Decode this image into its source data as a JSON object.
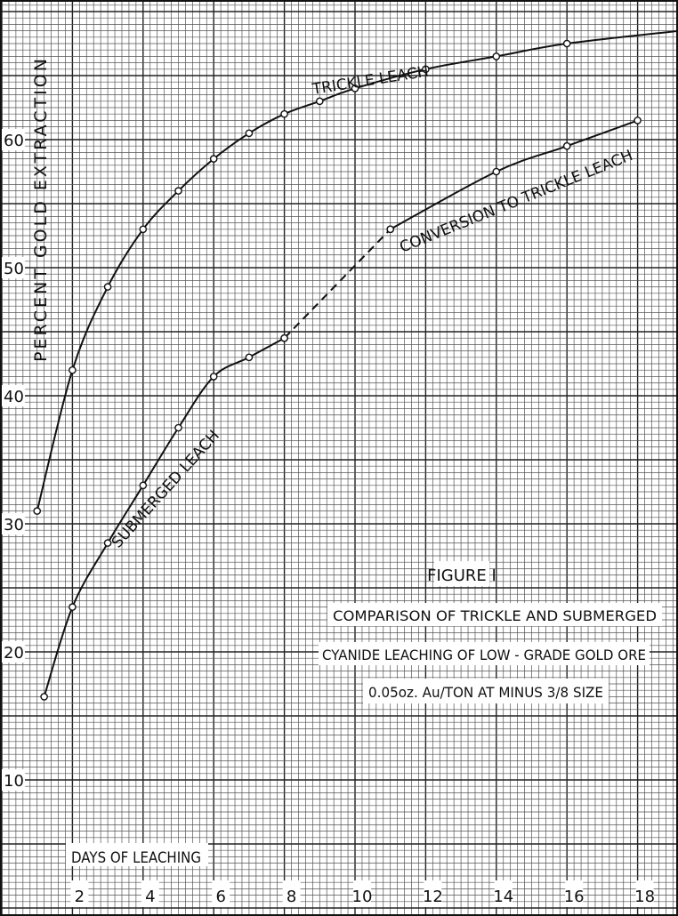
{
  "chart_data": {
    "type": "line",
    "ylabel": "PERCENT GOLD EXTRACTION",
    "xlabel": "DAYS OF LEACHING",
    "xlim": [
      0.1,
      19.2
    ],
    "ylim": [
      0,
      70
    ],
    "grid": true,
    "x_ticks": [
      2,
      4,
      6,
      8,
      10,
      12,
      14,
      16,
      18
    ],
    "y_ticks": [
      10,
      20,
      30,
      40,
      50,
      60
    ],
    "series": [
      {
        "name": "TRICKLE LEACH",
        "x": [
          1,
          2,
          3,
          4,
          5,
          6,
          7,
          8,
          9,
          10,
          12,
          14,
          16,
          19.2
        ],
        "y": [
          31.0,
          42.0,
          48.5,
          53.0,
          56.0,
          58.5,
          60.5,
          62.0,
          63.0,
          64.0,
          65.5,
          66.5,
          67.5,
          68.5
        ]
      },
      {
        "name": "SUBMERGED LEACH",
        "x": [
          1.2,
          2,
          3,
          4,
          5,
          6,
          7,
          8
        ],
        "y": [
          16.5,
          23.5,
          28.5,
          33.0,
          37.5,
          41.5,
          43.0,
          44.5
        ]
      },
      {
        "name": "CONVERSION TO TRICKLE LEACH",
        "x": [
          8,
          11
        ],
        "y": [
          44.5,
          53.0
        ],
        "line_style": "dashed"
      },
      {
        "name": "CONVERSION TO TRICKLE LEACH",
        "x": [
          11,
          14,
          16,
          18
        ],
        "y": [
          53.0,
          57.5,
          59.5,
          61.5
        ]
      }
    ],
    "curve_labels": [
      "TRICKLE LEACH",
      "SUBMERGED LEACH",
      "CONVERSION TO TRICKLE LEACH"
    ],
    "annotations": {
      "figure_number": "FIGURE I",
      "caption_line1": "COMPARISON OF TRICKLE AND SUBMERGED",
      "caption_line2": "CYANIDE LEACHING OF LOW - GRADE GOLD ORE",
      "caption_line3": "0.05oz. Au/TON AT MINUS 3/8 SIZE"
    },
    "colors": {
      "grid": "#555555",
      "grid_major": "#222222",
      "ink": "#111111",
      "paper": "#ffffff"
    }
  }
}
